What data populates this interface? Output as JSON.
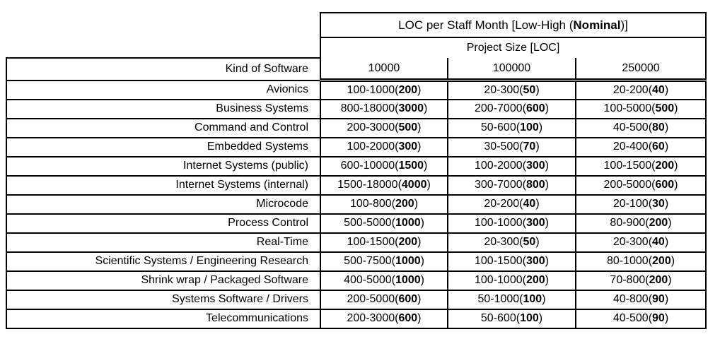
{
  "table": {
    "title": {
      "prefix": "LOC per Staff Month [Low-High (",
      "bold": "Nominal",
      "suffix": ")]"
    },
    "project_size_label": "Project Size [LOC]",
    "kind_header": "Kind of Software",
    "size_headers": [
      "10000",
      "100000",
      "250000"
    ],
    "rows": [
      {
        "kind": "Avionics",
        "cells": [
          "100-1000(200)",
          "20-300(50)",
          "20-200(40)"
        ]
      },
      {
        "kind": "Business Systems",
        "cells": [
          "800-18000(3000)",
          "200-7000(600)",
          "100-5000(500)"
        ]
      },
      {
        "kind": "Command and Control",
        "cells": [
          "200-3000(500)",
          "50-600(100)",
          "40-500(80)"
        ]
      },
      {
        "kind": "Embedded Systems",
        "cells": [
          "100-2000(300)",
          "30-500(70)",
          "20-400(60)"
        ]
      },
      {
        "kind": "Internet Systems (public)",
        "cells": [
          "600-10000(1500)",
          "100-2000(300)",
          "100-1500(200)"
        ]
      },
      {
        "kind": "Internet Systems (internal)",
        "cells": [
          "1500-18000(4000)",
          "300-7000(800)",
          "200-5000(600)"
        ]
      },
      {
        "kind": "Microcode",
        "cells": [
          "100-800(200)",
          "20-200(40)",
          "20-100(30)"
        ]
      },
      {
        "kind": "Process Control",
        "cells": [
          "500-5000(1000)",
          "100-1000(300)",
          "80-900(200)"
        ]
      },
      {
        "kind": "Real-Time",
        "cells": [
          "100-1500(200)",
          "20-300(50)",
          "20-300(40)"
        ]
      },
      {
        "kind": "Scientific Systems / Engineering Research",
        "cells": [
          "500-7500(1000)",
          "100-1500(300)",
          "80-1000(200)"
        ]
      },
      {
        "kind": "Shrink wrap / Packaged Software",
        "cells": [
          "400-5000(1000)",
          "100-1000(200)",
          "70-800(200)"
        ]
      },
      {
        "kind": "Systems Software / Drivers",
        "cells": [
          "200-5000(600)",
          "50-1000(100)",
          "40-800(90)"
        ]
      },
      {
        "kind": "Telecommunications",
        "cells": [
          "200-3000(600)",
          "50-600(100)",
          "40-500(90)"
        ]
      }
    ],
    "colors": {
      "border": "#000000",
      "text": "#000000",
      "background": "#ffffff"
    }
  }
}
